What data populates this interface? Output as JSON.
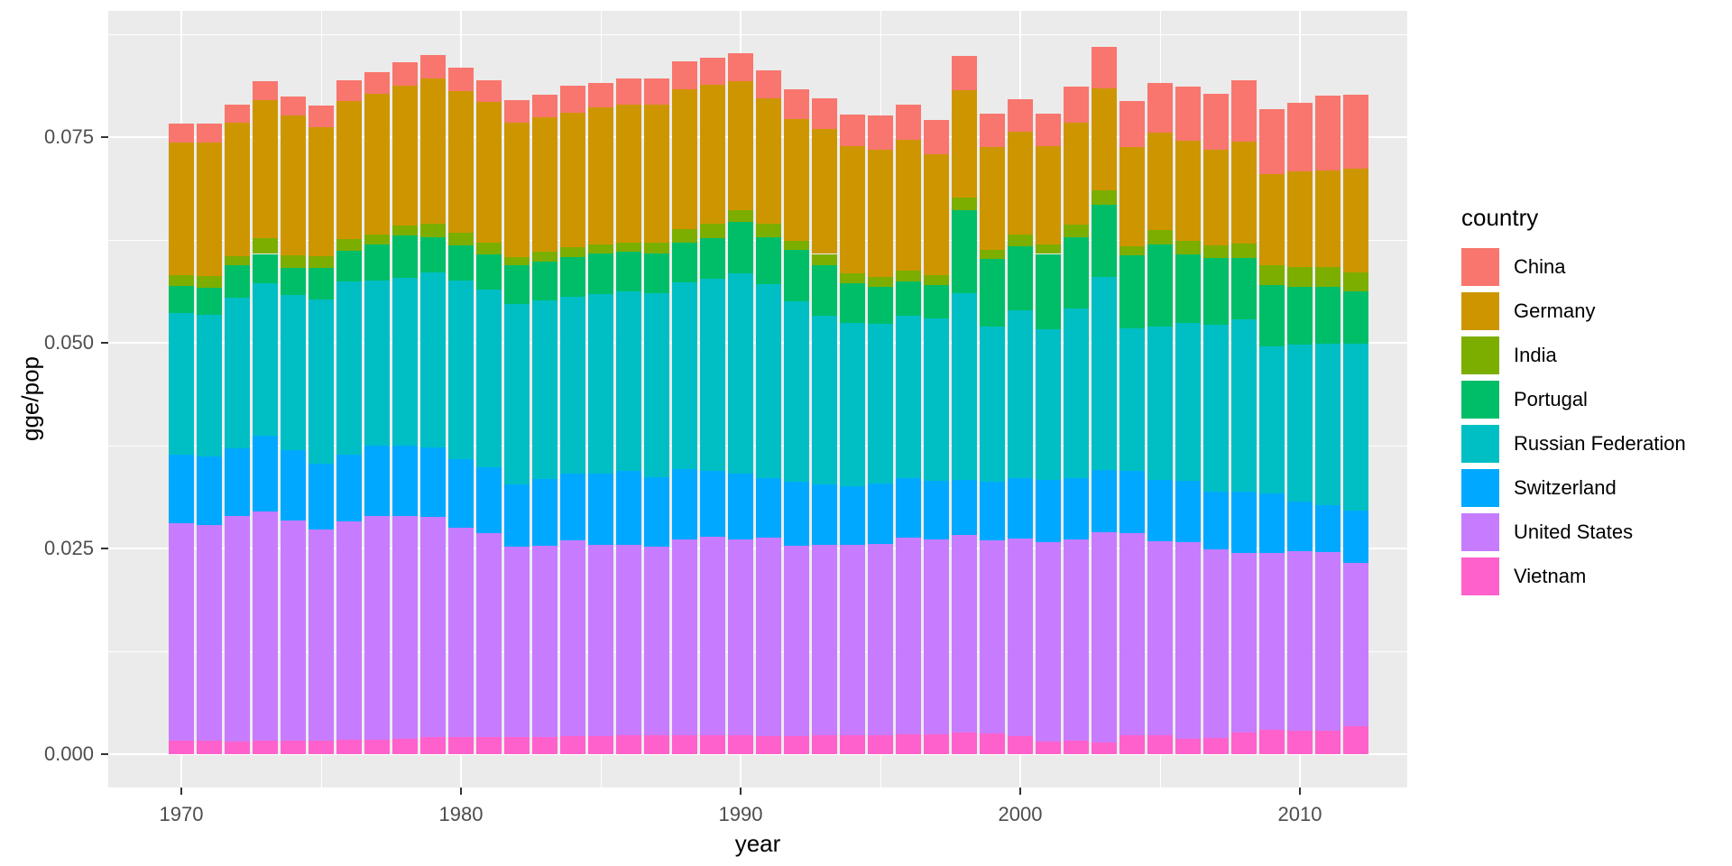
{
  "chart_data": {
    "type": "bar",
    "stacked": true,
    "title": "",
    "xlabel": "year",
    "ylabel": "gge/pop",
    "legend_title": "country",
    "panel_background": "#EBEBEB",
    "grid_color": "#FFFFFF",
    "tick_label_color": "#4D4D4D",
    "x": [
      1970,
      1971,
      1972,
      1973,
      1974,
      1975,
      1976,
      1977,
      1978,
      1979,
      1980,
      1981,
      1982,
      1983,
      1984,
      1985,
      1986,
      1987,
      1988,
      1989,
      1990,
      1991,
      1992,
      1993,
      1994,
      1995,
      1996,
      1997,
      1998,
      1999,
      2000,
      2001,
      2002,
      2003,
      2004,
      2005,
      2006,
      2007,
      2008,
      2009,
      2010,
      2011,
      2012
    ],
    "x_ticks": [
      "1970",
      "1980",
      "1990",
      "2000",
      "2010"
    ],
    "x_tick_values": [
      1970,
      1980,
      1990,
      2000,
      2010
    ],
    "y_ticks": [
      "0.000",
      "0.025",
      "0.050",
      "0.075"
    ],
    "y_tick_values": [
      0,
      0.025,
      0.05,
      0.075
    ],
    "ylim": [
      -0.004,
      0.0903
    ],
    "legend_position": "right",
    "grid": "major-and-minor",
    "stack_order_bottom_to_top": [
      "Vietnam",
      "United States",
      "Switzerland",
      "Russian Federation",
      "Portugal",
      "India",
      "Germany",
      "China"
    ],
    "series": [
      {
        "name": "China",
        "color": "#F8766D",
        "values": [
          0.0023,
          0.0023,
          0.0023,
          0.0023,
          0.0023,
          0.0026,
          0.0025,
          0.0026,
          0.0028,
          0.0029,
          0.0028,
          0.0026,
          0.0027,
          0.0028,
          0.0032,
          0.003,
          0.0031,
          0.0031,
          0.0034,
          0.0033,
          0.0034,
          0.0034,
          0.0036,
          0.0037,
          0.0038,
          0.0041,
          0.0042,
          0.0042,
          0.0042,
          0.004,
          0.0039,
          0.004,
          0.0043,
          0.0051,
          0.0056,
          0.006,
          0.0065,
          0.0068,
          0.0074,
          0.0079,
          0.0084,
          0.0091,
          0.0089
        ]
      },
      {
        "name": "Germany",
        "color": "#CD9600",
        "values": [
          0.0161,
          0.0162,
          0.0162,
          0.0168,
          0.017,
          0.0157,
          0.0168,
          0.0171,
          0.017,
          0.0176,
          0.0172,
          0.0171,
          0.0164,
          0.0163,
          0.0164,
          0.0166,
          0.0168,
          0.0168,
          0.017,
          0.0169,
          0.0157,
          0.0152,
          0.0148,
          0.0152,
          0.0155,
          0.0155,
          0.0159,
          0.0147,
          0.013,
          0.0125,
          0.0125,
          0.0119,
          0.0124,
          0.0124,
          0.0121,
          0.0119,
          0.0122,
          0.0117,
          0.0124,
          0.0111,
          0.0116,
          0.0117,
          0.0127
        ]
      },
      {
        "name": "India",
        "color": "#7CAE00",
        "values": [
          0.0013,
          0.0014,
          0.0011,
          0.0019,
          0.0015,
          0.0014,
          0.0014,
          0.0013,
          0.0013,
          0.0017,
          0.0016,
          0.0014,
          0.001,
          0.0012,
          0.0012,
          0.0011,
          0.0011,
          0.0013,
          0.0016,
          0.0018,
          0.0014,
          0.0017,
          0.0011,
          0.0014,
          0.0012,
          0.0012,
          0.0013,
          0.0012,
          0.0016,
          0.0011,
          0.0015,
          0.0012,
          0.0016,
          0.0017,
          0.0011,
          0.0018,
          0.0017,
          0.0015,
          0.0018,
          0.0024,
          0.0024,
          0.0024,
          0.0023
        ]
      },
      {
        "name": "Portugal",
        "color": "#00BE67",
        "values": [
          0.0033,
          0.0033,
          0.0039,
          0.0036,
          0.0033,
          0.0038,
          0.0037,
          0.0043,
          0.0051,
          0.0042,
          0.0042,
          0.0043,
          0.0047,
          0.0048,
          0.0048,
          0.005,
          0.0049,
          0.0049,
          0.0048,
          0.0049,
          0.0063,
          0.0057,
          0.0063,
          0.0061,
          0.0048,
          0.0045,
          0.0042,
          0.004,
          0.0101,
          0.0082,
          0.0077,
          0.0092,
          0.0086,
          0.0088,
          0.0088,
          0.0099,
          0.0083,
          0.0081,
          0.0074,
          0.0074,
          0.007,
          0.0069,
          0.0063
        ]
      },
      {
        "name": "Russian Federation",
        "color": "#00BFC4",
        "values": [
          0.0172,
          0.0172,
          0.0183,
          0.0185,
          0.0188,
          0.02,
          0.0211,
          0.0201,
          0.0204,
          0.0213,
          0.0217,
          0.0216,
          0.0219,
          0.0217,
          0.0215,
          0.0218,
          0.0218,
          0.0223,
          0.0227,
          0.0234,
          0.0243,
          0.0235,
          0.0219,
          0.0205,
          0.0198,
          0.0194,
          0.0197,
          0.0198,
          0.0227,
          0.0189,
          0.0204,
          0.0183,
          0.0207,
          0.0235,
          0.0174,
          0.0187,
          0.0192,
          0.0203,
          0.021,
          0.0179,
          0.0191,
          0.0196,
          0.0203
        ]
      },
      {
        "name": "Switzerland",
        "color": "#00A9FF",
        "values": [
          0.0083,
          0.0084,
          0.0082,
          0.0092,
          0.0086,
          0.008,
          0.0081,
          0.0085,
          0.0085,
          0.0085,
          0.0084,
          0.008,
          0.0076,
          0.0081,
          0.0081,
          0.0087,
          0.009,
          0.0085,
          0.0086,
          0.008,
          0.008,
          0.0073,
          0.0078,
          0.0074,
          0.0072,
          0.0074,
          0.0073,
          0.0071,
          0.0067,
          0.0071,
          0.0074,
          0.0075,
          0.0074,
          0.0075,
          0.0075,
          0.0074,
          0.0074,
          0.007,
          0.0074,
          0.0072,
          0.006,
          0.0057,
          0.0063
        ]
      },
      {
        "name": "United States",
        "color": "#C77CFF",
        "values": [
          0.0265,
          0.0262,
          0.0275,
          0.0279,
          0.0268,
          0.0257,
          0.0265,
          0.0272,
          0.0271,
          0.0267,
          0.0254,
          0.0248,
          0.0231,
          0.0232,
          0.0238,
          0.0232,
          0.0231,
          0.0229,
          0.0238,
          0.0241,
          0.0238,
          0.0241,
          0.0231,
          0.0231,
          0.0231,
          0.0232,
          0.0239,
          0.0237,
          0.024,
          0.0235,
          0.024,
          0.0243,
          0.0245,
          0.0256,
          0.0246,
          0.0236,
          0.0239,
          0.0229,
          0.0219,
          0.0215,
          0.0218,
          0.0217,
          0.0199
        ]
      },
      {
        "name": "Vietnam",
        "color": "#FF61CC",
        "values": [
          0.0016,
          0.0016,
          0.0015,
          0.0016,
          0.0016,
          0.0016,
          0.0018,
          0.0018,
          0.0019,
          0.0021,
          0.0021,
          0.0021,
          0.0021,
          0.0021,
          0.0022,
          0.0022,
          0.0023,
          0.0023,
          0.0023,
          0.0023,
          0.0023,
          0.0022,
          0.0022,
          0.0023,
          0.0023,
          0.0023,
          0.0024,
          0.0024,
          0.0026,
          0.0025,
          0.0022,
          0.0015,
          0.0016,
          0.0014,
          0.0023,
          0.0023,
          0.0019,
          0.002,
          0.0026,
          0.003,
          0.0029,
          0.0029,
          0.0034
        ]
      }
    ]
  }
}
